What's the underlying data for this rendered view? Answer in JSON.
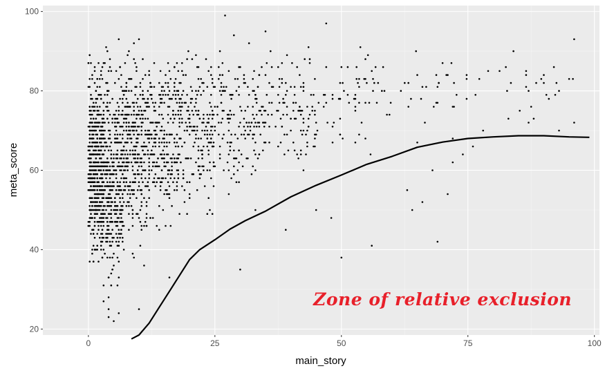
{
  "chart_data": {
    "type": "scatter",
    "title": "",
    "xlabel": "main_story",
    "ylabel": "meta_score",
    "xlim": [
      -9,
      101
    ],
    "ylim": [
      18.5,
      101.5
    ],
    "x_ticks": [
      0,
      25,
      50,
      75,
      100
    ],
    "x_tick_labels": [
      "0",
      "25",
      "50",
      "75",
      "100"
    ],
    "y_ticks": [
      20,
      40,
      60,
      80,
      100
    ],
    "y_tick_labels": [
      "20",
      "40",
      "60",
      "80",
      "100"
    ],
    "grid": true,
    "legend": "none",
    "annotation": {
      "text": "Zone of relative exclusion",
      "x": 70,
      "y": 26
    },
    "curve": {
      "name": "",
      "x": [
        8.5,
        10,
        12,
        14,
        16,
        18,
        20,
        22,
        25,
        28,
        31,
        35,
        40,
        45,
        50,
        55,
        60,
        65,
        70,
        75,
        80,
        85,
        90,
        95,
        99
      ],
      "y": [
        17.5,
        18.5,
        21.5,
        25.5,
        29.5,
        33.5,
        37.5,
        40,
        42.5,
        45.2,
        47.3,
        49.7,
        53.3,
        56.2,
        58.8,
        61.5,
        63.5,
        65.8,
        67.1,
        68.0,
        68.4,
        68.7,
        68.7,
        68.4,
        68.3
      ]
    },
    "series": [
      {
        "name": "",
        "clusters": [
          {
            "x_range": [
              0,
              3
            ],
            "y_range": [
              29,
              94
            ],
            "count": 520
          },
          {
            "x_range": [
              3,
              7
            ],
            "y_range": [
              24,
              96
            ],
            "count": 380
          },
          {
            "x_range": [
              7,
              12
            ],
            "y_range": [
              33,
              97
            ],
            "count": 320
          },
          {
            "x_range": [
              12,
              18
            ],
            "y_range": [
              40,
              97
            ],
            "count": 260
          },
          {
            "x_range": [
              18,
              25
            ],
            "y_range": [
              44,
              96
            ],
            "count": 200
          },
          {
            "x_range": [
              25,
              35
            ],
            "y_range": [
              48,
              96
            ],
            "count": 170
          },
          {
            "x_range": [
              35,
              45
            ],
            "y_range": [
              55,
              96
            ],
            "count": 110
          },
          {
            "x_range": [
              45,
              60
            ],
            "y_range": [
              60,
              95
            ],
            "count": 65
          },
          {
            "x_range": [
              60,
              75
            ],
            "y_range": [
              65,
              95
            ],
            "count": 30
          },
          {
            "x_range": [
              75,
              97
            ],
            "y_range": [
              69,
              93
            ],
            "count": 22
          }
        ],
        "points": [
          [
            4,
            23
          ],
          [
            5,
            22
          ],
          [
            4,
            25
          ],
          [
            6,
            24
          ],
          [
            10,
            25
          ],
          [
            3,
            27
          ],
          [
            4,
            28
          ],
          [
            30,
            35
          ],
          [
            50,
            38
          ],
          [
            56,
            41
          ],
          [
            69,
            42
          ],
          [
            9,
            38
          ],
          [
            16,
            33
          ],
          [
            3,
            31
          ],
          [
            64,
            50
          ],
          [
            48,
            48
          ],
          [
            39,
            45
          ],
          [
            45,
            50
          ],
          [
            66,
            52
          ],
          [
            63,
            55
          ],
          [
            71,
            54
          ],
          [
            68,
            60
          ],
          [
            72,
            62
          ],
          [
            74,
            64
          ],
          [
            78,
            70
          ],
          [
            83,
            73
          ],
          [
            87,
            72
          ],
          [
            96,
            72
          ],
          [
            93,
            70
          ],
          [
            95,
            83
          ],
          [
            96,
            93
          ],
          [
            92,
            86
          ],
          [
            84,
            90
          ],
          [
            87,
            80
          ],
          [
            88,
            73
          ],
          [
            76,
            66
          ],
          [
            72,
            68
          ],
          [
            10,
            93
          ],
          [
            27,
            99
          ],
          [
            35,
            95
          ],
          [
            47,
            97
          ]
        ]
      }
    ]
  }
}
